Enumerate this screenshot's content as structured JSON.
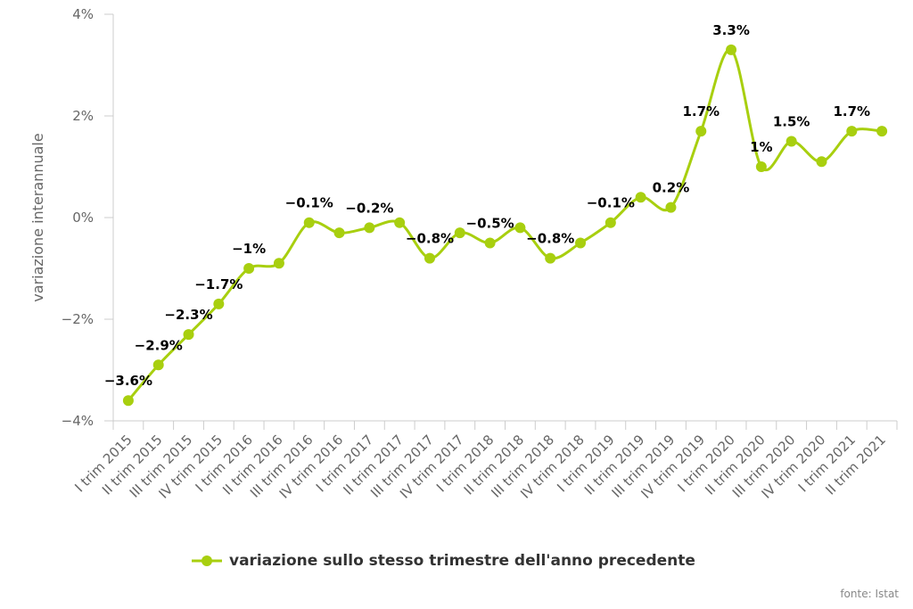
{
  "chart_data": {
    "type": "line",
    "ylabel": "variazione interannuale",
    "ylim": [
      -4,
      4
    ],
    "yticks": [
      {
        "v": 4,
        "label": "4%"
      },
      {
        "v": 2,
        "label": "2%"
      },
      {
        "v": 0,
        "label": "0%"
      },
      {
        "v": -2,
        "label": "−2%"
      },
      {
        "v": -4,
        "label": "−4%"
      }
    ],
    "categories": [
      "I trim 2015",
      "II trim 2015",
      "III trim 2015",
      "IV trim 2015",
      "I trim 2016",
      "II trim 2016",
      "III trim 2016",
      "IV trim 2016",
      "I trim 2017",
      "II trim 2017",
      "III trim 2017",
      "IV trim 2017",
      "I trim 2018",
      "II trim 2018",
      "III trim 2018",
      "IV trim 2018",
      "I trim 2019",
      "II trim 2019",
      "III trim 2019",
      "IV trim 2019",
      "I trim 2020",
      "II trim 2020",
      "III trim 2020",
      "IV trim 2020",
      "I trim 2021",
      "II trim 2021"
    ],
    "series": [
      {
        "name": "variazione sullo stesso trimestre dell'anno precedente",
        "color": "#a8cf0f",
        "values": [
          -3.6,
          -2.9,
          -2.3,
          -1.7,
          -1.0,
          -0.9,
          -0.1,
          -0.3,
          -0.2,
          -0.1,
          -0.8,
          -0.3,
          -0.5,
          -0.2,
          -0.8,
          -0.5,
          -0.1,
          0.4,
          0.2,
          1.7,
          3.3,
          1.0,
          1.5,
          1.1,
          1.7,
          1.7
        ],
        "labels": [
          "−3.6%",
          "−2.9%",
          "−2.3%",
          "−1.7%",
          "−1%",
          "",
          "−0.1%",
          "",
          "−0.2%",
          "",
          "−0.8%",
          "",
          "−0.5%",
          "",
          "−0.8%",
          "",
          "−0.1%",
          "",
          "0.2%",
          "1.7%",
          "3.3%",
          "1%",
          "1.5%",
          "",
          "1.7%",
          ""
        ]
      }
    ],
    "grid": false,
    "legend_position": "bottom-center"
  },
  "legend": {
    "label": "variazione sullo stesso trimestre dell'anno precedente"
  },
  "credit": "fonte: Istat"
}
